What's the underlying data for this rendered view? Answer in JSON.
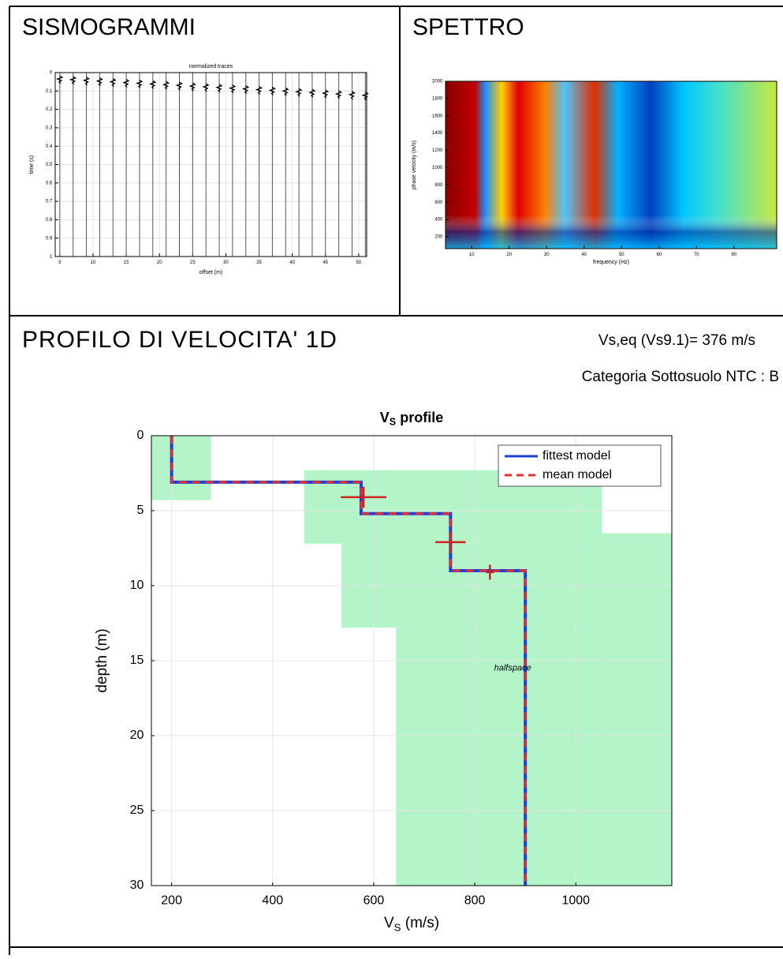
{
  "header": {
    "seismograms": "SISMOGRAMMI",
    "spectrum": "SPETTRO",
    "profile": "PROFILO DI VELOCITA' 1D",
    "vs_eq": "Vs,eq (Vs9.1)= 376 m/s",
    "category": "Categoria Sottosuolo NTC : B"
  },
  "chart_data": [
    {
      "type": "seismogram",
      "title": "normalized traces",
      "xlabel": "offset (m)",
      "ylabel": "time (s)",
      "x": [
        5,
        7,
        9,
        11,
        13,
        15,
        17,
        19,
        21,
        23,
        25,
        27,
        29,
        31,
        33,
        35,
        37,
        39,
        41,
        43,
        45,
        47,
        49,
        51
      ],
      "xlim": [
        4.3,
        51.2
      ],
      "xticks": [
        5,
        10,
        15,
        20,
        25,
        30,
        35,
        40,
        45,
        50
      ],
      "ylim": [
        0,
        1
      ],
      "yticks": [
        0,
        0.1,
        0.2,
        0.3,
        0.4,
        0.5,
        0.6,
        0.7,
        0.8,
        0.9,
        1
      ],
      "y_reversed": true,
      "grid": true,
      "color": "#555555"
    },
    {
      "type": "spectrum",
      "xlabel": "frequency (Hz)",
      "ylabel": "phase velocity (m/s)",
      "xlim": [
        3,
        91.4
      ],
      "xticks": [
        10,
        20,
        30,
        40,
        50,
        60,
        70,
        80
      ],
      "ylim": [
        63,
        2000
      ],
      "yticks": [
        200,
        400,
        600,
        800,
        1000,
        1200,
        1400,
        1600,
        1800,
        2000
      ]
    },
    {
      "type": "profile",
      "title": {
        "main": "V",
        "sub": "S",
        "rest": " profile"
      },
      "xlabel": {
        "main": "V",
        "sub": "S",
        "rest": " (m/s)"
      },
      "ylabel": "depth (m)",
      "xlim": [
        160,
        1190
      ],
      "xticks": [
        200,
        400,
        600,
        800,
        1000
      ],
      "ylim": [
        0,
        30
      ],
      "yticks": [
        0,
        5,
        10,
        15,
        20,
        25,
        30
      ],
      "y_reversed": true,
      "grid": true,
      "legend": "top-right",
      "series": [
        {
          "name": "fittest model",
          "color": "#1f3fd6",
          "dash": false,
          "x": [
            200,
            200,
            575,
            575,
            752,
            752,
            900,
            900
          ],
          "values": [
            0,
            3.1,
            3.1,
            5.2,
            5.2,
            9,
            9,
            30
          ]
        },
        {
          "name": "mean model",
          "color": "#e03030",
          "dash": true,
          "x": [
            200,
            200,
            575,
            575,
            752,
            752,
            900,
            900
          ],
          "values": [
            0,
            3.1,
            3.1,
            5.2,
            5.2,
            9,
            9,
            30
          ]
        }
      ],
      "error_bars": [
        {
          "x": 580,
          "y": 4.1,
          "xerr": 45,
          "yerr": 0.7
        },
        {
          "x": 752,
          "y": 7.1,
          "xerr": 30,
          "yerr": 0.7
        },
        {
          "x": 830,
          "y": 9.1,
          "xerr": 8,
          "yerr": 0.5
        }
      ],
      "error_color": "#d02020",
      "search_area": [
        {
          "x": [
            160,
            278
          ],
          "y": [
            0,
            4.3
          ]
        },
        {
          "x": [
            462,
            1052
          ],
          "y": [
            2.3,
            7.2
          ]
        },
        {
          "x": [
            536,
            1052
          ],
          "y": [
            7.2,
            12.8
          ]
        },
        {
          "x": [
            644,
            1052
          ],
          "y": [
            12.8,
            30
          ]
        },
        {
          "x": [
            1052,
            1190
          ],
          "y": [
            6.5,
            30
          ]
        }
      ],
      "search_color": "#b3f5c9",
      "annotation": {
        "text": "halfspace",
        "x": 875,
        "y": 15.5
      }
    }
  ]
}
